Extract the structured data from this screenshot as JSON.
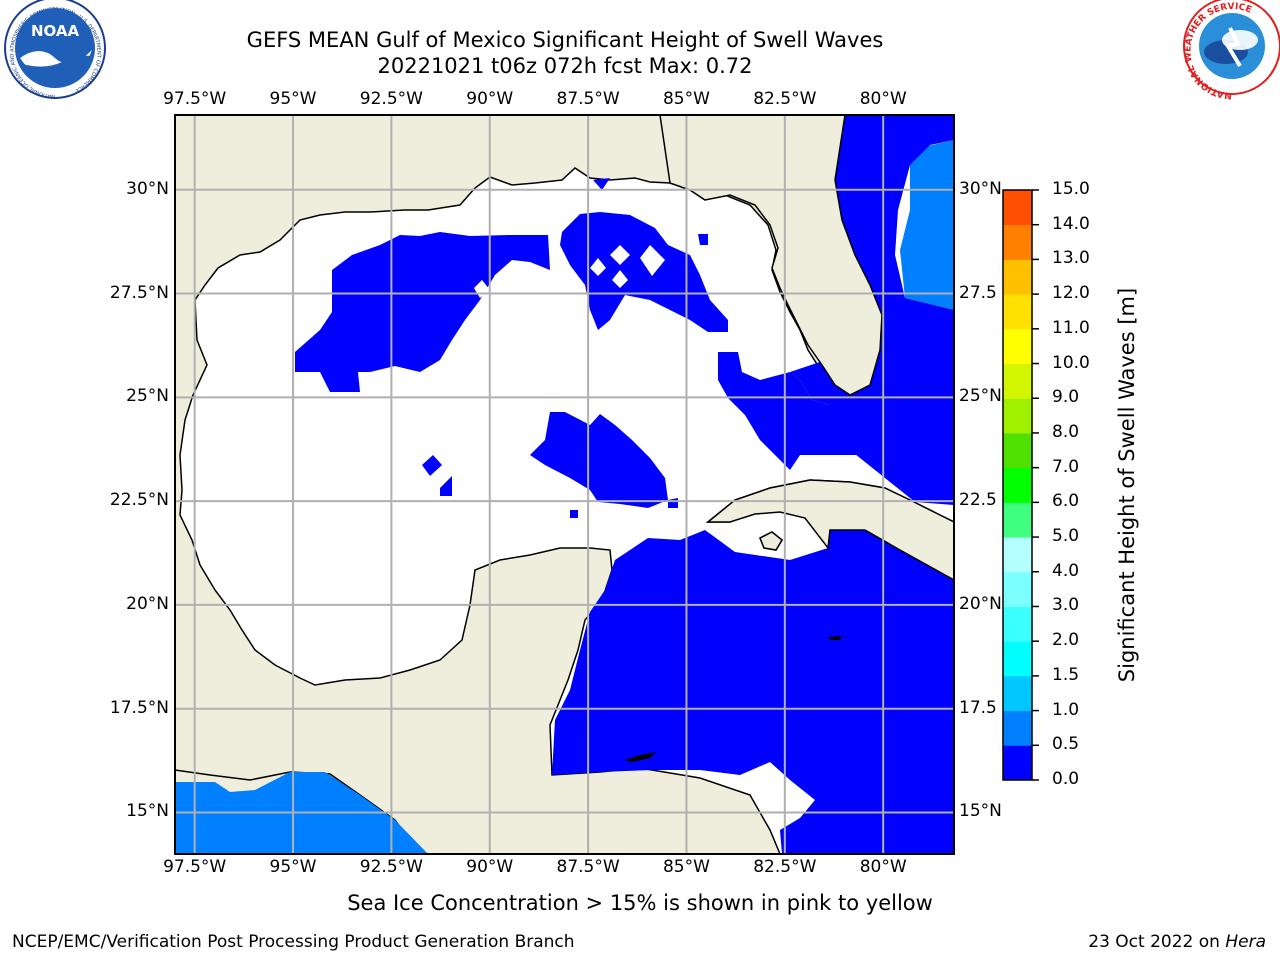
{
  "title_line1": "GEFS MEAN Gulf of Mexico Significant Height of Swell Waves",
  "title_line2": "20221021 t06z 072h fcst   Max: 0.72",
  "logos": {
    "left": {
      "icon": "noaa-logo",
      "text": "NOAA",
      "ring_text": "NATIONAL OCEANIC AND ATMOSPHERIC ADMINISTRATION · U.S. DEPARTMENT OF COMMERCE"
    },
    "right": {
      "icon": "nws-logo",
      "ring_text": "NATIONAL WEATHER SERVICE"
    }
  },
  "map": {
    "lon_ticks": [
      "97.5°W",
      "95°W",
      "92.5°W",
      "90°W",
      "87.5°W",
      "85°W",
      "82.5°W",
      "80°W"
    ],
    "lon_values": [
      -97.5,
      -95,
      -92.5,
      -90,
      -87.5,
      -85,
      -82.5,
      -80
    ],
    "lat_ticks_left": [
      "30°N",
      "27.5°N",
      "25°N",
      "22.5°N",
      "20°N",
      "17.5°N",
      "15°N"
    ],
    "lat_ticks_right": [
      "30°N",
      "27.5",
      "25°N",
      "22.5",
      "20°N",
      "17.5",
      "15°N"
    ],
    "lat_values": [
      30,
      27.5,
      25,
      22.5,
      20,
      17.5,
      15
    ],
    "lon_range": [
      -98,
      -78.2
    ],
    "lat_range": [
      14,
      31.8
    ],
    "land_color": "#efeedc",
    "grid_color": "#b0b0b0"
  },
  "colorbar": {
    "label": "Significant Height of Swell Waves [m]",
    "tick_labels": [
      "0.0",
      "0.5",
      "1.0",
      "1.5",
      "2.0",
      "3.0",
      "4.0",
      "5.0",
      "6.0",
      "7.0",
      "8.0",
      "9.0",
      "10.0",
      "11.0",
      "12.0",
      "13.0",
      "14.0",
      "15.0"
    ],
    "colors": [
      "#0000ff",
      "#0080ff",
      "#00c8ff",
      "#00ffff",
      "#3cffff",
      "#7cffff",
      "#b4ffff",
      "#40ff80",
      "#00ff00",
      "#50e000",
      "#a0f000",
      "#d2f500",
      "#ffff00",
      "#ffe000",
      "#ffc000",
      "#ff8000",
      "#ff5000",
      "#ff2000",
      "#ff0000"
    ]
  },
  "note": "Sea Ice Concentration > 15% is shown in pink to yellow",
  "footer_left": "NCEP/EMC/Verification Post Processing Product Generation Branch",
  "footer_right_prefix": "23 Oct 2022 on ",
  "footer_right_host": "Hera"
}
